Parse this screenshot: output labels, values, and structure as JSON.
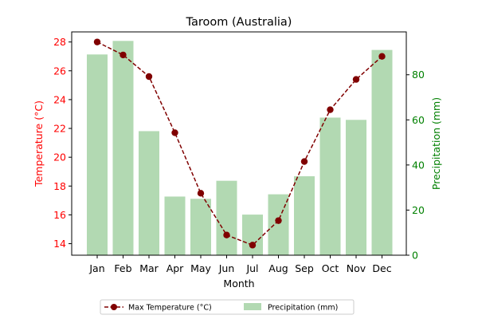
{
  "chart_data": {
    "type": "bar+line",
    "title": "Taroom (Australia)",
    "xlabel": "Month",
    "categories": [
      "Jan",
      "Feb",
      "Mar",
      "Apr",
      "May",
      "Jun",
      "Jul",
      "Aug",
      "Sep",
      "Oct",
      "Nov",
      "Dec"
    ],
    "series": [
      {
        "name": "Max Temperature (°C)",
        "type": "line",
        "axis": "left",
        "style": "dashed",
        "marker": "circle",
        "color": "#800000",
        "values": [
          28.0,
          27.1,
          25.6,
          21.7,
          17.5,
          14.6,
          13.9,
          15.6,
          19.7,
          23.3,
          25.4,
          27.0
        ]
      },
      {
        "name": "Precipitation (mm)",
        "type": "bar",
        "axis": "right",
        "color": "#b2d9b2",
        "values": [
          89,
          95,
          55,
          26,
          25,
          33,
          18,
          27,
          35,
          61,
          60,
          91
        ]
      }
    ],
    "y_left": {
      "label": "Temperature (°C)",
      "color": "#ff0000",
      "ylim": [
        13.2,
        28.7
      ],
      "ticks": [
        "14",
        "16",
        "18",
        "20",
        "22",
        "24",
        "26",
        "28"
      ]
    },
    "y_right": {
      "label": "Precipitation (mm)",
      "color": "#008000",
      "ylim": [
        0,
        99
      ],
      "ticks": [
        "0",
        "20",
        "40",
        "60",
        "80"
      ]
    },
    "legend": {
      "placement": "bottom-center",
      "entries": [
        "Max Temperature (°C)",
        "Precipitation (mm)"
      ]
    },
    "grid": false
  }
}
